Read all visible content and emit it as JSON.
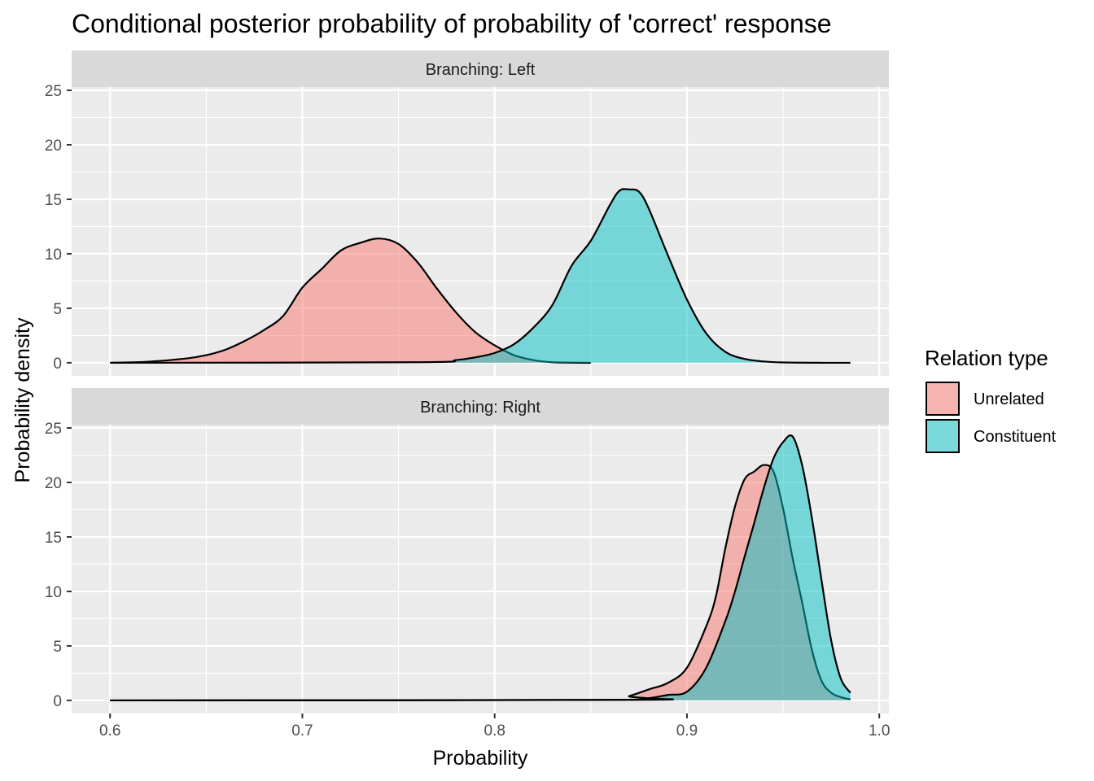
{
  "chart_data": {
    "type": "area",
    "title": "Conditional posterior probability of probability of 'correct' response",
    "xlabel": "Probability",
    "ylabel": "Probability density",
    "xlim": [
      0.58,
      1.005
    ],
    "ylim": [
      -1.2,
      25.3
    ],
    "x_ticks": [
      0.6,
      0.7,
      0.8,
      0.9,
      1.0
    ],
    "x_tick_labels": [
      "0.6",
      "0.7",
      "0.8",
      "0.9",
      "1.0"
    ],
    "y_ticks": [
      0,
      5,
      10,
      15,
      20,
      25
    ],
    "y_tick_labels": [
      "0",
      "5",
      "10",
      "15",
      "20",
      "25"
    ],
    "grid": true,
    "legend": {
      "title": "Relation type",
      "position": "right",
      "entries": [
        {
          "label": "Unrelated",
          "color": "#F8766D"
        },
        {
          "label": "Constituent",
          "color": "#00BFC4"
        }
      ]
    },
    "panels": [
      {
        "label": "Branching: Left",
        "series": [
          {
            "name": "Unrelated",
            "color": "#F8766D",
            "x": [
              0.6,
              0.62,
              0.64,
              0.65,
              0.66,
              0.67,
              0.68,
              0.69,
              0.7,
              0.71,
              0.72,
              0.73,
              0.74,
              0.75,
              0.76,
              0.77,
              0.78,
              0.79,
              0.8,
              0.81,
              0.82,
              0.83,
              0.85
            ],
            "y": [
              0,
              0.1,
              0.4,
              0.7,
              1.2,
              2.0,
              3.0,
              4.3,
              6.9,
              8.6,
              10.3,
              11.0,
              11.4,
              10.9,
              9.2,
              6.8,
              4.6,
              2.8,
              1.6,
              0.7,
              0.25,
              0.05,
              0
            ]
          },
          {
            "name": "Constituent",
            "color": "#00BFC4",
            "x": [
              0.6,
              0.76,
              0.78,
              0.79,
              0.8,
              0.81,
              0.82,
              0.83,
              0.84,
              0.85,
              0.86,
              0.865,
              0.87,
              0.875,
              0.88,
              0.89,
              0.9,
              0.91,
              0.92,
              0.93,
              0.94,
              0.95,
              0.97,
              0.985
            ],
            "y": [
              0,
              0.05,
              0.25,
              0.5,
              0.9,
              1.7,
              3.2,
              5.3,
              8.9,
              11.2,
              14.5,
              15.8,
              15.9,
              15.7,
              14.2,
              9.9,
              5.8,
              2.7,
              1.0,
              0.35,
              0.12,
              0.03,
              0,
              0
            ]
          }
        ]
      },
      {
        "label": "Branching: Right",
        "series": [
          {
            "name": "Unrelated",
            "color": "#F8766D",
            "x": [
              0.6,
              0.86,
              0.87,
              0.88,
              0.89,
              0.9,
              0.91,
              0.915,
              0.92,
              0.925,
              0.93,
              0.935,
              0.94,
              0.945,
              0.95,
              0.955,
              0.96,
              0.965,
              0.97,
              0.975,
              0.98,
              0.985
            ],
            "y": [
              0,
              0.05,
              0.4,
              1.0,
              1.6,
              3.0,
              6.8,
              9.5,
              14.0,
              17.8,
              20.3,
              21.0,
              21.6,
              21.0,
              17.6,
              13.0,
              8.9,
              4.6,
              1.8,
              0.7,
              0.3,
              0.1
            ]
          },
          {
            "name": "Constituent",
            "color": "#00BFC4",
            "x": [
              0.6,
              0.87,
              0.88,
              0.89,
              0.9,
              0.91,
              0.92,
              0.925,
              0.93,
              0.935,
              0.94,
              0.945,
              0.95,
              0.955,
              0.96,
              0.965,
              0.97,
              0.975,
              0.98,
              0.985
            ],
            "y": [
              0,
              0.05,
              0.2,
              0.5,
              0.8,
              3.0,
              7.3,
              10.0,
              13.2,
              16.3,
              19.5,
              22.2,
              23.7,
              24.2,
              21.5,
              16.7,
              11.0,
              5.5,
              2.0,
              0.7
            ]
          }
        ]
      }
    ]
  }
}
